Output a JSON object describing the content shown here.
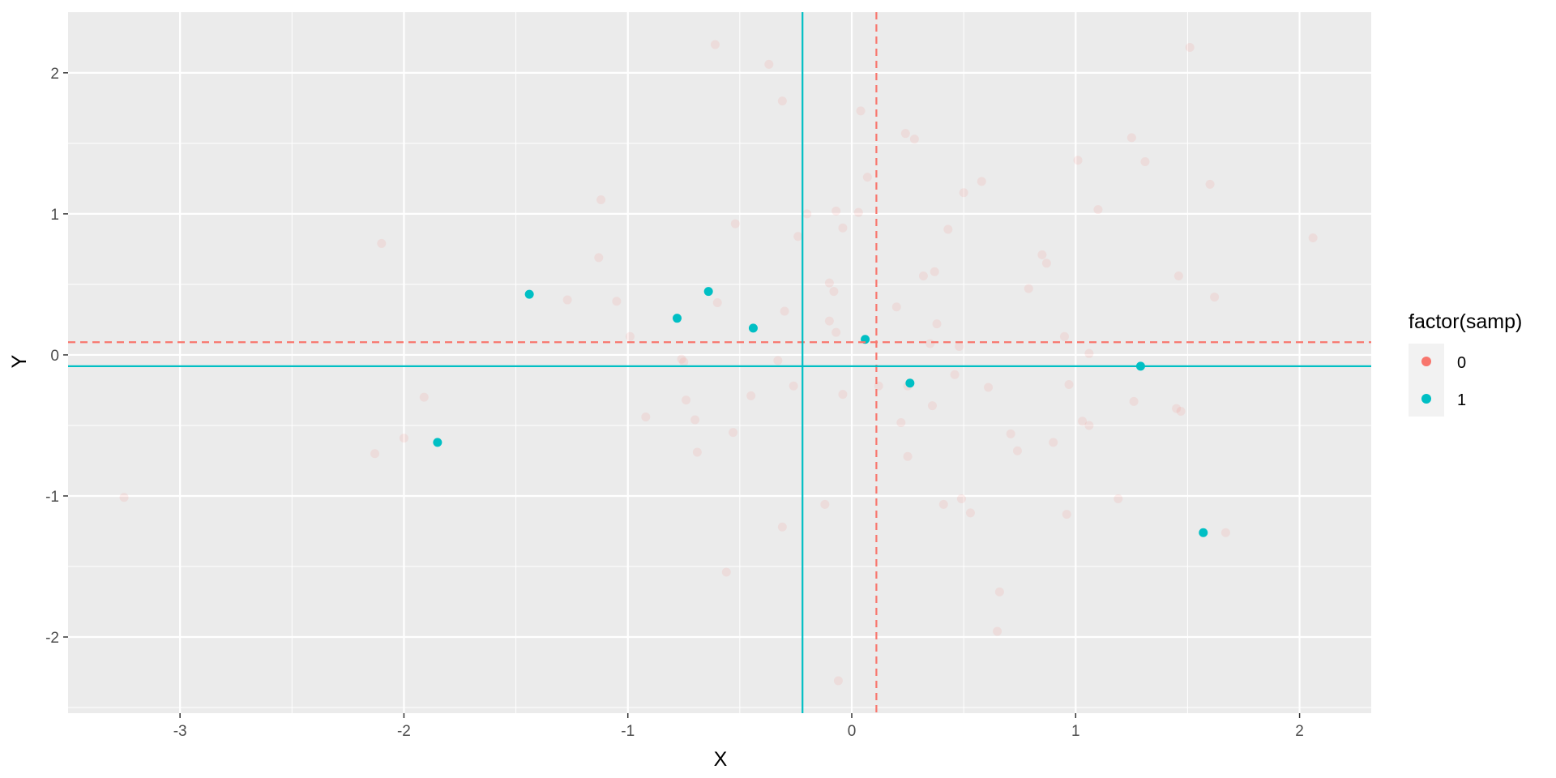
{
  "chart_data": {
    "type": "scatter",
    "title": "",
    "xlabel": "X",
    "ylabel": "Y",
    "xlim": [
      -3.5,
      2.32
    ],
    "ylim": [
      -2.54,
      2.43
    ],
    "x_ticks": [
      -3,
      -2,
      -1,
      0,
      1,
      2
    ],
    "y_ticks": [
      -2,
      -1,
      0,
      1,
      2
    ],
    "x_tick_labels": [
      "-3",
      "-2",
      "-1",
      "0",
      "1",
      "2"
    ],
    "y_tick_labels": [
      "-2",
      "-1",
      "0",
      "1",
      "2"
    ],
    "grid": true,
    "legend": {
      "title": "factor(samp)",
      "position": "right",
      "entries": [
        {
          "label": "0",
          "color": "#F8766D"
        },
        {
          "label": "1",
          "color": "#00BFC4"
        }
      ]
    },
    "series": [
      {
        "name": "0",
        "color": "#F8766D",
        "opacity": 0.12,
        "x": [
          -3.25,
          -2.1,
          -2.13,
          -2.0,
          -1.91,
          -1.12,
          -1.13,
          -1.27,
          -1.05,
          -0.99,
          -0.92,
          -0.76,
          -0.74,
          -0.75,
          -0.7,
          -0.69,
          -0.61,
          -0.6,
          -0.52,
          -0.53,
          -0.45,
          -0.56,
          -0.37,
          -0.31,
          -0.3,
          -0.33,
          -0.31,
          -0.26,
          -0.24,
          -0.2,
          -0.12,
          -0.1,
          -0.1,
          -0.08,
          -0.07,
          -0.04,
          -0.04,
          -0.06,
          0.03,
          0.04,
          0.07,
          0.12,
          0.2,
          0.22,
          0.24,
          0.25,
          0.25,
          0.28,
          0.32,
          0.35,
          0.36,
          0.37,
          0.38,
          0.43,
          0.41,
          0.46,
          0.48,
          0.49,
          0.5,
          0.53,
          0.58,
          0.61,
          0.65,
          0.66,
          0.71,
          0.74,
          0.79,
          0.85,
          0.87,
          0.9,
          0.95,
          0.96,
          0.97,
          1.01,
          1.03,
          1.06,
          1.06,
          1.1,
          1.19,
          1.25,
          1.26,
          1.31,
          1.45,
          1.46,
          1.47,
          1.51,
          1.6,
          1.62,
          1.67,
          2.06,
          -0.07
        ],
        "y": [
          -1.01,
          0.79,
          -0.7,
          -0.59,
          -0.3,
          1.1,
          0.69,
          0.39,
          0.38,
          0.13,
          -0.44,
          -0.03,
          -0.32,
          -0.05,
          -0.46,
          -0.69,
          2.2,
          0.37,
          0.93,
          -0.55,
          -0.29,
          -1.54,
          2.06,
          1.8,
          0.31,
          -0.04,
          -1.22,
          -0.22,
          0.84,
          1.0,
          -1.06,
          0.51,
          0.24,
          0.45,
          0.16,
          0.9,
          -0.28,
          -2.31,
          1.01,
          1.73,
          1.26,
          -0.22,
          0.34,
          -0.48,
          1.57,
          -0.72,
          -0.22,
          1.53,
          0.56,
          0.08,
          -0.36,
          0.59,
          0.22,
          0.89,
          -1.06,
          -0.14,
          0.06,
          -1.02,
          1.15,
          -1.12,
          1.23,
          -0.23,
          -1.96,
          -1.68,
          -0.56,
          -0.68,
          0.47,
          0.71,
          0.65,
          -0.62,
          0.13,
          -1.13,
          -0.21,
          1.38,
          -0.47,
          -0.5,
          0.01,
          1.03,
          -1.02,
          1.54,
          -0.33,
          1.37,
          -0.38,
          0.56,
          -0.4,
          2.18,
          1.21,
          0.41,
          -1.26,
          0.83,
          1.02
        ]
      },
      {
        "name": "1",
        "color": "#00BFC4",
        "opacity": 1,
        "x": [
          -1.85,
          -1.44,
          -0.78,
          -0.64,
          -0.44,
          0.06,
          0.26,
          1.29,
          1.57
        ],
        "y": [
          -0.62,
          0.43,
          0.26,
          0.45,
          0.19,
          0.11,
          -0.2,
          -0.08,
          -1.26
        ]
      }
    ],
    "reference_lines": [
      {
        "series": "0",
        "orientation": "vertical",
        "value": 0.11,
        "style": "dashed",
        "color": "#F8766D"
      },
      {
        "series": "0",
        "orientation": "horizontal",
        "value": 0.09,
        "style": "dashed",
        "color": "#F8766D"
      },
      {
        "series": "1",
        "orientation": "vertical",
        "value": -0.22,
        "style": "solid",
        "color": "#00BFC4"
      },
      {
        "series": "1",
        "orientation": "horizontal",
        "value": -0.08,
        "style": "solid",
        "color": "#00BFC4"
      }
    ],
    "panel_background": "#EBEBEB",
    "grid_color": "#FFFFFF"
  }
}
